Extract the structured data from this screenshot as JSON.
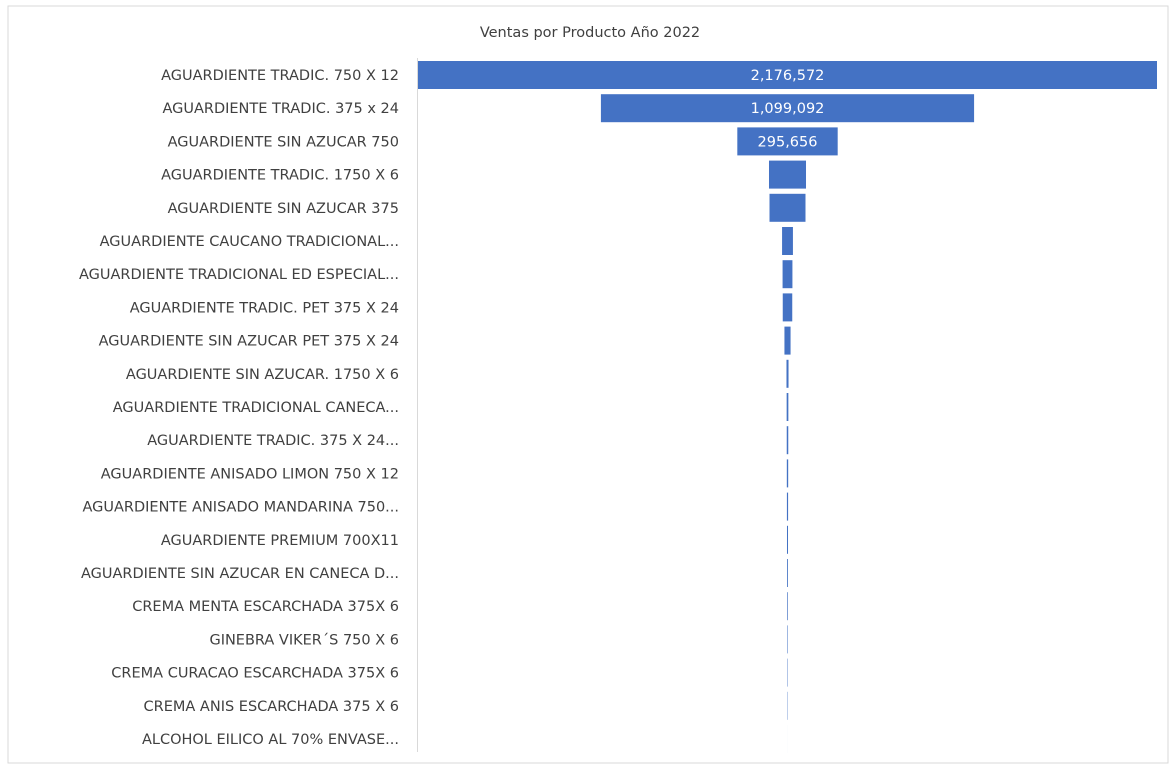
{
  "chart_data": {
    "type": "funnel",
    "title": "Ventas por Producto Año 2022",
    "categories": [
      "AGUARDIENTE TRADIC. 750 X 12",
      "AGUARDIENTE TRADIC. 375 x 24",
      "AGUARDIENTE SIN AZUCAR 750",
      "AGUARDIENTE TRADIC. 1750 X 6",
      "AGUARDIENTE SIN AZUCAR 375",
      "AGUARDIENTE CAUCANO TRADICIONAL...",
      "AGUARDIENTE TRADICIONAL ED ESPECIAL...",
      "AGUARDIENTE TRADIC. PET 375 X 24",
      "AGUARDIENTE SIN AZUCAR PET 375 X 24",
      "AGUARDIENTE SIN AZUCAR. 1750 X 6",
      "AGUARDIENTE TRADICIONAL CANECA...",
      "AGUARDIENTE TRADIC. 375 X 24...",
      "AGUARDIENTE ANISADO LIMON 750 X 12",
      "AGUARDIENTE ANISADO MANDARINA 750...",
      "AGUARDIENTE PREMIUM 700X11",
      "AGUARDIENTE SIN AZUCAR EN CANECA D...",
      "CREMA MENTA ESCARCHADA 375X 6",
      "GINEBRA VIKER´S 750 X 6",
      "CREMA CURACAO ESCARCHADA  375X 6",
      "CREMA ANIS ESCARCHADA  375 X 6",
      "ALCOHOL EILICO AL 70% ENVASE..."
    ],
    "values": [
      2176572,
      1099092,
      295656,
      109000,
      106000,
      32000,
      29000,
      28000,
      18000,
      6000,
      5000,
      4500,
      4000,
      3500,
      3000,
      2500,
      2000,
      1500,
      1200,
      1000,
      50
    ],
    "value_labels": [
      "2,176,572",
      "1,099,092",
      "295,656",
      null,
      null,
      null,
      null,
      null,
      null,
      null,
      null,
      null,
      null,
      null,
      null,
      null,
      null,
      null,
      null,
      null,
      null
    ],
    "color": "#4472c4"
  }
}
